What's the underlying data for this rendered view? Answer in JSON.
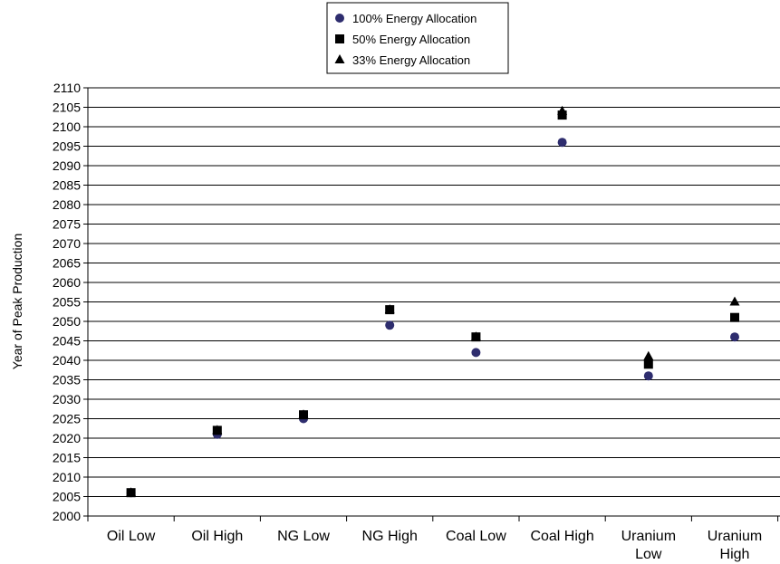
{
  "chart_data": {
    "type": "scatter",
    "title": "",
    "xlabel": "",
    "ylabel": "Year of Peak Production",
    "ylim": [
      2000,
      2110
    ],
    "ytick_step": 5,
    "grid": "horizontal",
    "legend_position": "top-center",
    "categories": [
      [
        "Oil Low"
      ],
      [
        "Oil High"
      ],
      [
        "NG Low"
      ],
      [
        "NG High"
      ],
      [
        "Coal Low"
      ],
      [
        "Coal High"
      ],
      [
        "Uranium",
        "Low"
      ],
      [
        "Uranium",
        "High"
      ]
    ],
    "series": [
      {
        "name": "100% Energy Allocation",
        "marker": "circle",
        "color": "#2e2d6e",
        "values": [
          2006,
          2021,
          2025,
          2049,
          2042,
          2096,
          2036,
          2046
        ]
      },
      {
        "name": "50% Energy Allocation",
        "marker": "square",
        "color": "#000000",
        "values": [
          2006,
          2022,
          2026,
          2053,
          2046,
          2103,
          2039,
          2051
        ]
      },
      {
        "name": "33% Energy Allocation",
        "marker": "triangle",
        "color": "#000000",
        "values": [
          2006,
          2022,
          2026,
          2053,
          2046,
          2104,
          2041,
          2055
        ]
      }
    ]
  }
}
